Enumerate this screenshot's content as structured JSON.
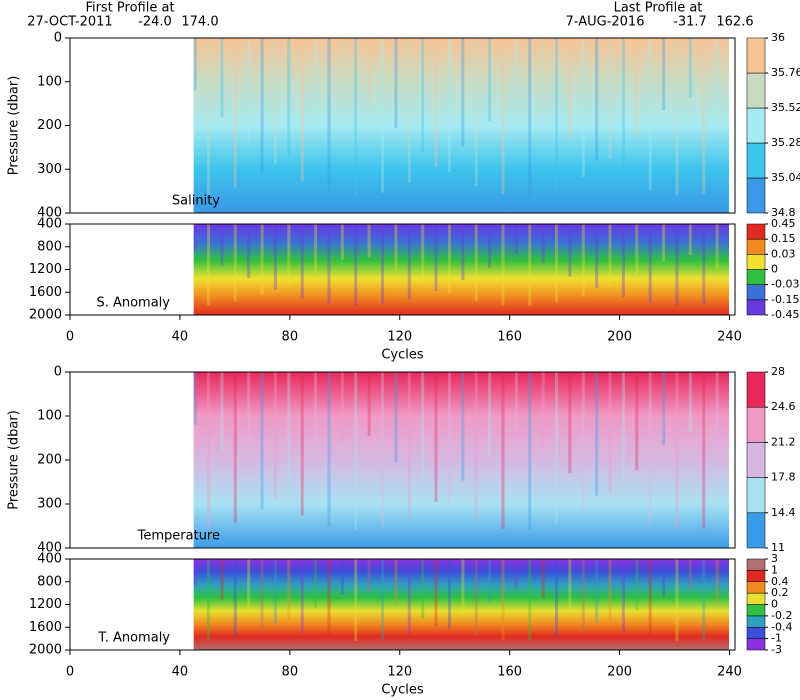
{
  "header": {
    "first_label": "First Profile at",
    "first_date": "27-OCT-2011",
    "first_lat": "-24.0",
    "first_lon": "174.0",
    "last_label": "Last Profile at",
    "last_date": "7-AUG-2016",
    "last_lat": "-31.7",
    "last_lon": "162.6"
  },
  "chart_data": [
    {
      "type": "heatmap",
      "label": "Salinity",
      "ylabel": "Pressure (dbar)",
      "xlim": [
        0,
        242
      ],
      "x_start": 45,
      "ylim": [
        0,
        400
      ],
      "yticks": [
        0,
        100,
        200,
        300,
        400
      ],
      "colorbar": {
        "ticks": [
          34.8,
          35.04,
          35.28,
          35.52,
          35.76,
          36
        ],
        "colors": [
          "#3a98e6",
          "#3cc4ec",
          "#a6eaf2",
          "#c8dcc4",
          "#f8c496"
        ]
      }
    },
    {
      "type": "heatmap",
      "label": "S. Anomaly",
      "xlabel": "Cycles",
      "xlim": [
        0,
        242
      ],
      "x_start": 45,
      "ylim": [
        400,
        2000
      ],
      "yticks": [
        400,
        800,
        1200,
        1600,
        2000
      ],
      "xticks": [
        0,
        40,
        80,
        120,
        160,
        200,
        240
      ],
      "colorbar": {
        "ticks": [
          -0.45,
          -0.15,
          -0.03,
          0,
          0.03,
          0.15,
          0.45
        ],
        "colors": [
          "#6a38e0",
          "#3a70d8",
          "#30c040",
          "#f0e030",
          "#f08a20",
          "#e02a20"
        ]
      }
    },
    {
      "type": "heatmap",
      "label": "Temperature",
      "ylabel": "Pressure (dbar)",
      "xlim": [
        0,
        242
      ],
      "x_start": 45,
      "ylim": [
        0,
        400
      ],
      "yticks": [
        0,
        100,
        200,
        300,
        400
      ],
      "colorbar": {
        "ticks": [
          11,
          14.4,
          17.8,
          21.2,
          24.6,
          28
        ],
        "colors": [
          "#3a9ce8",
          "#a8e2f2",
          "#d6b8e2",
          "#f09ac6",
          "#e8285a"
        ]
      }
    },
    {
      "type": "heatmap",
      "label": "T. Anomaly",
      "xlabel": "Cycles",
      "xlim": [
        0,
        242
      ],
      "x_start": 45,
      "ylim": [
        400,
        2000
      ],
      "yticks": [
        400,
        800,
        1200,
        1600,
        2000
      ],
      "xticks": [
        0,
        40,
        80,
        120,
        160,
        200,
        240
      ],
      "colorbar": {
        "ticks": [
          -3,
          -1,
          -0.4,
          -0.2,
          0,
          0.2,
          0.4,
          1,
          3
        ],
        "colors": [
          "#8a30e0",
          "#3a50d8",
          "#30a0c0",
          "#30c040",
          "#e8e030",
          "#f08a20",
          "#e02a20",
          "#b07070"
        ]
      }
    }
  ]
}
